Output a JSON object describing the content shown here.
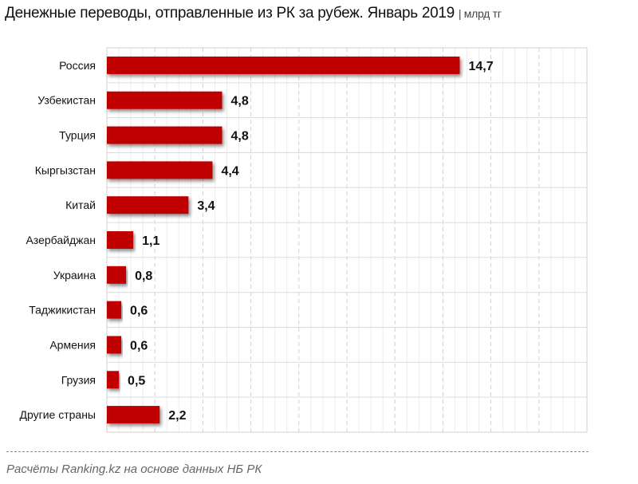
{
  "title": "Денежные переводы, отправленные из РК за рубеж. Январь 2019",
  "unit": "| млрд тг",
  "source": "Расчёты Ranking.kz на основе данных НБ РК",
  "colors": {
    "bar": "#c00000",
    "grid": "#d9d9d9"
  },
  "chart_data": {
    "type": "bar",
    "orientation": "horizontal",
    "categories": [
      "Россия",
      "Узбекистан",
      "Турция",
      "Кыргызстан",
      "Китай",
      "Азербайджан",
      "Украина",
      "Таджикистан",
      "Армения",
      "Грузия",
      "Другие страны"
    ],
    "values": [
      14.7,
      4.8,
      4.8,
      4.4,
      3.4,
      1.1,
      0.8,
      0.6,
      0.6,
      0.5,
      2.2
    ],
    "labels": [
      "14,7",
      "4,8",
      "4,8",
      "4,4",
      "3,4",
      "1,1",
      "0,8",
      "0,6",
      "0,6",
      "0,5",
      "2,2"
    ],
    "xlim": [
      0,
      20
    ],
    "grid": true,
    "legend": "none"
  }
}
